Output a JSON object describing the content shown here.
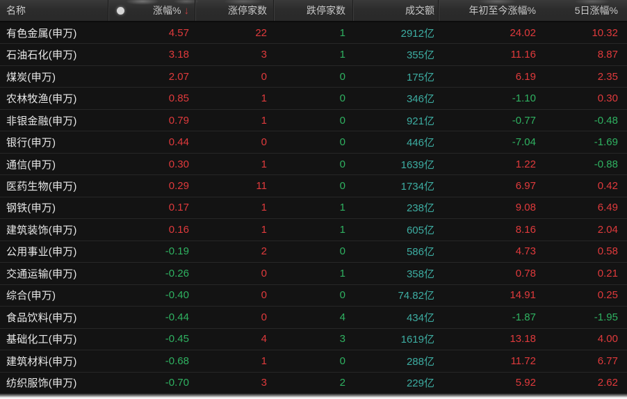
{
  "colors": {
    "up": "#e03a3c",
    "down": "#2fb261",
    "turnover": "#3dada2",
    "name_text": "#e8e8e8",
    "header_text": "#c9c9c9",
    "header_bg": "#2c2c2c",
    "row_bg": "#131313",
    "separator": "#272727",
    "sort_arrow": "#c04040"
  },
  "table": {
    "sort": {
      "column": "涨幅%",
      "direction": "desc",
      "arrow": "↓"
    },
    "columns": [
      {
        "key": "name",
        "label": "名称",
        "align": "left"
      },
      {
        "key": "dot",
        "label": "",
        "align": "center",
        "icon": "dot-icon"
      },
      {
        "key": "chg_pct",
        "label": "涨幅%",
        "align": "right"
      },
      {
        "key": "limit_up",
        "label": "涨停家数",
        "align": "right"
      },
      {
        "key": "limit_down",
        "label": "跌停家数",
        "align": "right"
      },
      {
        "key": "turnover",
        "label": "成交额",
        "align": "right"
      },
      {
        "key": "ytd_pct",
        "label": "年初至今涨幅%",
        "align": "right"
      },
      {
        "key": "d5_pct",
        "label": "5日涨幅%",
        "align": "right"
      }
    ],
    "rows": [
      {
        "name": "有色金属(申万)",
        "chg_pct": "4.57",
        "limit_up": "22",
        "limit_down": "1",
        "turnover": "2912亿",
        "ytd_pct": "24.02",
        "d5_pct": "10.32"
      },
      {
        "name": "石油石化(申万)",
        "chg_pct": "3.18",
        "limit_up": "3",
        "limit_down": "1",
        "turnover": "355亿",
        "ytd_pct": "11.16",
        "d5_pct": "8.87"
      },
      {
        "name": "煤炭(申万)",
        "chg_pct": "2.07",
        "limit_up": "0",
        "limit_down": "0",
        "turnover": "175亿",
        "ytd_pct": "6.19",
        "d5_pct": "2.35"
      },
      {
        "name": "农林牧渔(申万)",
        "chg_pct": "0.85",
        "limit_up": "1",
        "limit_down": "0",
        "turnover": "346亿",
        "ytd_pct": "-1.10",
        "d5_pct": "0.30"
      },
      {
        "name": "非银金融(申万)",
        "chg_pct": "0.79",
        "limit_up": "1",
        "limit_down": "0",
        "turnover": "921亿",
        "ytd_pct": "-0.77",
        "d5_pct": "-0.48"
      },
      {
        "name": "银行(申万)",
        "chg_pct": "0.44",
        "limit_up": "0",
        "limit_down": "0",
        "turnover": "446亿",
        "ytd_pct": "-7.04",
        "d5_pct": "-1.69"
      },
      {
        "name": "通信(申万)",
        "chg_pct": "0.30",
        "limit_up": "1",
        "limit_down": "0",
        "turnover": "1639亿",
        "ytd_pct": "1.22",
        "d5_pct": "-0.88"
      },
      {
        "name": "医药生物(申万)",
        "chg_pct": "0.29",
        "limit_up": "11",
        "limit_down": "0",
        "turnover": "1734亿",
        "ytd_pct": "6.97",
        "d5_pct": "0.42"
      },
      {
        "name": "钢铁(申万)",
        "chg_pct": "0.17",
        "limit_up": "1",
        "limit_down": "1",
        "turnover": "238亿",
        "ytd_pct": "9.08",
        "d5_pct": "6.49"
      },
      {
        "name": "建筑装饰(申万)",
        "chg_pct": "0.16",
        "limit_up": "1",
        "limit_down": "1",
        "turnover": "605亿",
        "ytd_pct": "8.16",
        "d5_pct": "2.04"
      },
      {
        "name": "公用事业(申万)",
        "chg_pct": "-0.19",
        "limit_up": "2",
        "limit_down": "0",
        "turnover": "586亿",
        "ytd_pct": "4.73",
        "d5_pct": "0.58"
      },
      {
        "name": "交通运输(申万)",
        "chg_pct": "-0.26",
        "limit_up": "0",
        "limit_down": "1",
        "turnover": "358亿",
        "ytd_pct": "0.78",
        "d5_pct": "0.21"
      },
      {
        "name": "综合(申万)",
        "chg_pct": "-0.40",
        "limit_up": "0",
        "limit_down": "0",
        "turnover": "74.82亿",
        "ytd_pct": "14.91",
        "d5_pct": "0.25"
      },
      {
        "name": "食品饮料(申万)",
        "chg_pct": "-0.44",
        "limit_up": "0",
        "limit_down": "4",
        "turnover": "434亿",
        "ytd_pct": "-1.87",
        "d5_pct": "-1.95"
      },
      {
        "name": "基础化工(申万)",
        "chg_pct": "-0.45",
        "limit_up": "4",
        "limit_down": "3",
        "turnover": "1619亿",
        "ytd_pct": "13.18",
        "d5_pct": "4.00"
      },
      {
        "name": "建筑材料(申万)",
        "chg_pct": "-0.68",
        "limit_up": "1",
        "limit_down": "0",
        "turnover": "288亿",
        "ytd_pct": "11.72",
        "d5_pct": "6.77"
      },
      {
        "name": "纺织服饰(申万)",
        "chg_pct": "-0.70",
        "limit_up": "3",
        "limit_down": "2",
        "turnover": "229亿",
        "ytd_pct": "5.92",
        "d5_pct": "2.62"
      }
    ]
  }
}
